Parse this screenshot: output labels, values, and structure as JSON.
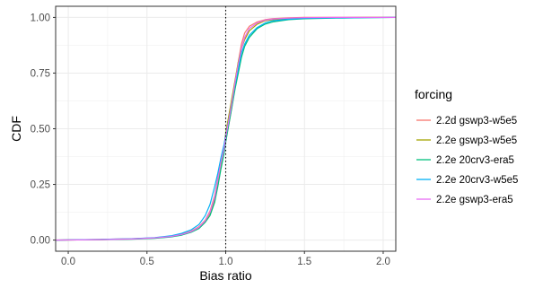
{
  "chart_data": {
    "type": "line",
    "title": "",
    "xlabel": "Bias ratio",
    "ylabel": "CDF",
    "xlim": [
      -0.08,
      2.08
    ],
    "ylim": [
      -0.05,
      1.05
    ],
    "x_ticks": [
      0.0,
      0.5,
      1.0,
      1.5,
      2.0
    ],
    "x_tick_labels": [
      "0.0",
      "0.5",
      "1.0",
      "1.5",
      "2.0"
    ],
    "y_ticks": [
      0.0,
      0.25,
      0.5,
      0.75,
      1.0
    ],
    "y_tick_labels": [
      "0.00",
      "0.25",
      "0.50",
      "0.75",
      "1.00"
    ],
    "grid": true,
    "reference_line": {
      "x": 1.0,
      "style": "dotted"
    },
    "legend": {
      "title": "forcing",
      "placement": "right"
    },
    "series": [
      {
        "name": "2.2d gswp3-w5e5",
        "color": "#F8766D",
        "x": [
          -0.1,
          0.2,
          0.4,
          0.55,
          0.65,
          0.72,
          0.78,
          0.83,
          0.87,
          0.9,
          0.93,
          0.95,
          0.97,
          0.99,
          1.0,
          1.02,
          1.04,
          1.06,
          1.08,
          1.1,
          1.12,
          1.15,
          1.2,
          1.25,
          1.3,
          1.4,
          1.5,
          1.7,
          1.9,
          2.1
        ],
        "y": [
          0.0,
          0.003,
          0.006,
          0.01,
          0.017,
          0.026,
          0.04,
          0.06,
          0.09,
          0.13,
          0.2,
          0.28,
          0.35,
          0.4,
          0.45,
          0.52,
          0.6,
          0.7,
          0.8,
          0.88,
          0.93,
          0.96,
          0.98,
          0.99,
          0.995,
          0.998,
          1.0,
          1.0,
          1.0,
          1.0
        ]
      },
      {
        "name": "2.2e gswp3-w5e5",
        "color": "#A3A500",
        "x": [
          -0.1,
          0.2,
          0.4,
          0.55,
          0.65,
          0.72,
          0.78,
          0.83,
          0.87,
          0.9,
          0.93,
          0.95,
          0.97,
          0.99,
          1.0,
          1.02,
          1.04,
          1.06,
          1.08,
          1.1,
          1.12,
          1.15,
          1.2,
          1.25,
          1.3,
          1.4,
          1.5,
          1.7,
          1.9,
          2.1
        ],
        "y": [
          0.0,
          0.002,
          0.005,
          0.009,
          0.015,
          0.024,
          0.037,
          0.055,
          0.085,
          0.12,
          0.18,
          0.26,
          0.34,
          0.42,
          0.48,
          0.56,
          0.64,
          0.72,
          0.8,
          0.86,
          0.9,
          0.94,
          0.97,
          0.985,
          0.99,
          0.995,
          0.997,
          0.999,
          1.0,
          1.0
        ]
      },
      {
        "name": "2.2e 20crv3-era5",
        "color": "#00BF7D",
        "x": [
          -0.1,
          0.2,
          0.4,
          0.55,
          0.65,
          0.72,
          0.78,
          0.83,
          0.87,
          0.9,
          0.93,
          0.95,
          0.97,
          0.99,
          1.0,
          1.02,
          1.04,
          1.06,
          1.08,
          1.1,
          1.12,
          1.15,
          1.2,
          1.25,
          1.3,
          1.4,
          1.5,
          1.7,
          1.9,
          2.1
        ],
        "y": [
          0.0,
          0.002,
          0.004,
          0.008,
          0.014,
          0.022,
          0.035,
          0.052,
          0.08,
          0.11,
          0.17,
          0.24,
          0.32,
          0.39,
          0.44,
          0.52,
          0.6,
          0.68,
          0.75,
          0.82,
          0.87,
          0.91,
          0.95,
          0.97,
          0.98,
          0.99,
          0.994,
          0.997,
          0.999,
          1.0
        ]
      },
      {
        "name": "2.2e 20crv3-w5e5",
        "color": "#00B0F6",
        "x": [
          -0.1,
          0.2,
          0.4,
          0.55,
          0.65,
          0.72,
          0.78,
          0.83,
          0.87,
          0.9,
          0.93,
          0.95,
          0.97,
          0.99,
          1.0,
          1.02,
          1.04,
          1.06,
          1.08,
          1.1,
          1.12,
          1.15,
          1.2,
          1.25,
          1.3,
          1.4,
          1.5,
          1.7,
          1.9,
          2.1
        ],
        "y": [
          0.0,
          0.003,
          0.006,
          0.011,
          0.019,
          0.03,
          0.046,
          0.07,
          0.11,
          0.16,
          0.24,
          0.3,
          0.37,
          0.43,
          0.47,
          0.54,
          0.62,
          0.7,
          0.77,
          0.84,
          0.88,
          0.92,
          0.955,
          0.975,
          0.985,
          0.992,
          0.996,
          0.998,
          0.999,
          1.0
        ]
      },
      {
        "name": "2.2e gswp3-era5",
        "color": "#E76BF3",
        "x": [
          -0.1,
          0.2,
          0.4,
          0.55,
          0.65,
          0.72,
          0.78,
          0.83,
          0.87,
          0.9,
          0.93,
          0.95,
          0.97,
          0.99,
          1.0,
          1.02,
          1.04,
          1.06,
          1.08,
          1.1,
          1.12,
          1.15,
          1.2,
          1.25,
          1.3,
          1.4,
          1.5,
          1.7,
          1.9,
          2.1
        ],
        "y": [
          0.0,
          0.002,
          0.005,
          0.01,
          0.016,
          0.025,
          0.038,
          0.057,
          0.087,
          0.125,
          0.19,
          0.27,
          0.35,
          0.41,
          0.46,
          0.54,
          0.62,
          0.71,
          0.79,
          0.86,
          0.91,
          0.95,
          0.975,
          0.988,
          0.993,
          0.997,
          0.999,
          1.0,
          1.0,
          1.0
        ]
      }
    ]
  }
}
